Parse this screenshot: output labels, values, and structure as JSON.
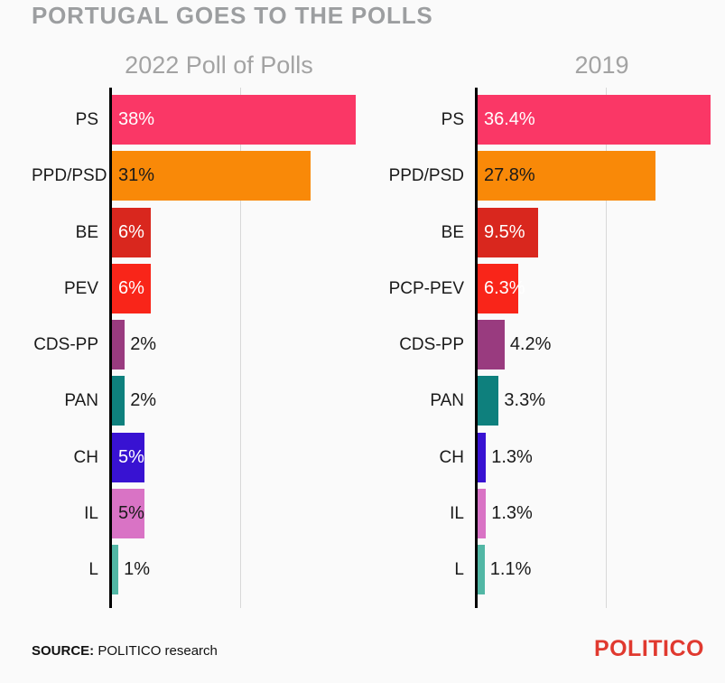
{
  "page": {
    "background": "#FAFAFA"
  },
  "header": {
    "title": "PORTUGAL GOES TO THE POLLS"
  },
  "footer": {
    "source_label": "SOURCE:",
    "source_text": "POLITICO research",
    "brand": "POLITICO",
    "brand_color": "#E0392F"
  },
  "chart_data": [
    {
      "type": "bar",
      "orientation": "horizontal",
      "title": "2022 Poll of Polls",
      "unit": "%",
      "xlim": [
        0,
        39
      ],
      "gridline_at": 20,
      "grid": "single-vertical-line",
      "categories": [
        "PS",
        "PPD/PSD",
        "BE",
        "PEV",
        "CDS-PP",
        "PAN",
        "CH",
        "IL",
        "L"
      ],
      "values": [
        38,
        31,
        6,
        6,
        2,
        2,
        5,
        5,
        1
      ],
      "labels": [
        "38%",
        "31%",
        "6%",
        "6%",
        "2%",
        "2%",
        "5%",
        "5%",
        "1%"
      ],
      "colors": [
        "#FA3766",
        "#F98908",
        "#D9271E",
        "#F92519",
        "#993B7F",
        "#0E807D",
        "#3812D2",
        "#D973C5",
        "#52B7A5"
      ],
      "label_inside": [
        true,
        true,
        true,
        true,
        false,
        false,
        true,
        true,
        false
      ],
      "label_colors": [
        "#FFFFFF",
        "#1A1A1A",
        "#FFFFFF",
        "#FFFFFF",
        "#1A1A1A",
        "#1A1A1A",
        "#FFFFFF",
        "#1A1A1A",
        "#1A1A1A"
      ]
    },
    {
      "type": "bar",
      "orientation": "horizontal",
      "title": "2019",
      "unit": "%",
      "xlim": [
        0,
        39
      ],
      "gridline_at": 20,
      "grid": "single-vertical-line",
      "categories": [
        "PS",
        "PPD/PSD",
        "BE",
        "PCP-PEV",
        "CDS-PP",
        "PAN",
        "CH",
        "IL",
        "L"
      ],
      "values": [
        36.4,
        27.8,
        9.5,
        6.3,
        4.2,
        3.3,
        1.3,
        1.3,
        1.1
      ],
      "labels": [
        "36.4%",
        "27.8%",
        "9.5%",
        "6.3%",
        "4.2%",
        "3.3%",
        "1.3%",
        "1.3%",
        "1.1%"
      ],
      "colors": [
        "#FA3766",
        "#F98908",
        "#D9271E",
        "#F92519",
        "#993B7F",
        "#0E807D",
        "#3812D2",
        "#D973C5",
        "#52B7A5"
      ],
      "label_inside": [
        true,
        true,
        true,
        true,
        false,
        false,
        false,
        false,
        false
      ],
      "label_colors": [
        "#FFFFFF",
        "#1A1A1A",
        "#FFFFFF",
        "#FFFFFF",
        "#1A1A1A",
        "#1A1A1A",
        "#1A1A1A",
        "#1A1A1A",
        "#1A1A1A"
      ]
    }
  ]
}
